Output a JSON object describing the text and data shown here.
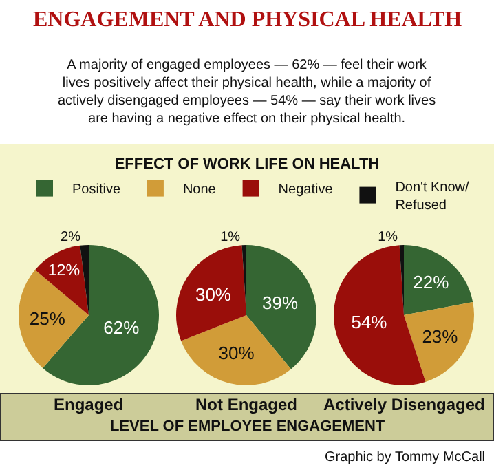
{
  "chart_data": {
    "type": "pie",
    "title": "ENGAGEMENT AND PHYSICAL HEALTH",
    "subtitle": "A majority of engaged employees — 62% — feel their work\nlives positively affect their physical health, while a majority of\nactively disengaged employees — 54% — say their work lives\nare having a negative effect on their physical health.",
    "legend_title": "EFFECT OF WORK LIFE ON HEALTH",
    "legend": "top",
    "xlabel": "LEVEL OF EMPLOYEE ENGAGEMENT",
    "annotations": [
      "Graphic by Tommy McCall"
    ],
    "categories": [
      "Positive",
      "None",
      "Negative",
      "Don't Know/\nRefused"
    ],
    "colors": [
      "#356633",
      "#d19c38",
      "#9a0e0a",
      "#111111"
    ],
    "series": [
      {
        "name": "Engaged",
        "values": [
          62,
          25,
          12,
          2
        ],
        "value_labels": [
          "62%",
          "25%",
          "12%",
          "2%"
        ]
      },
      {
        "name": "Not Engaged",
        "values": [
          39,
          30,
          30,
          1
        ],
        "value_labels": [
          "39%",
          "30%",
          "30%",
          "1%"
        ]
      },
      {
        "name": "Actively Disengaged",
        "values": [
          22,
          23,
          54,
          1
        ],
        "value_labels": [
          "22%",
          "23%",
          "54%",
          "1%"
        ]
      }
    ]
  }
}
